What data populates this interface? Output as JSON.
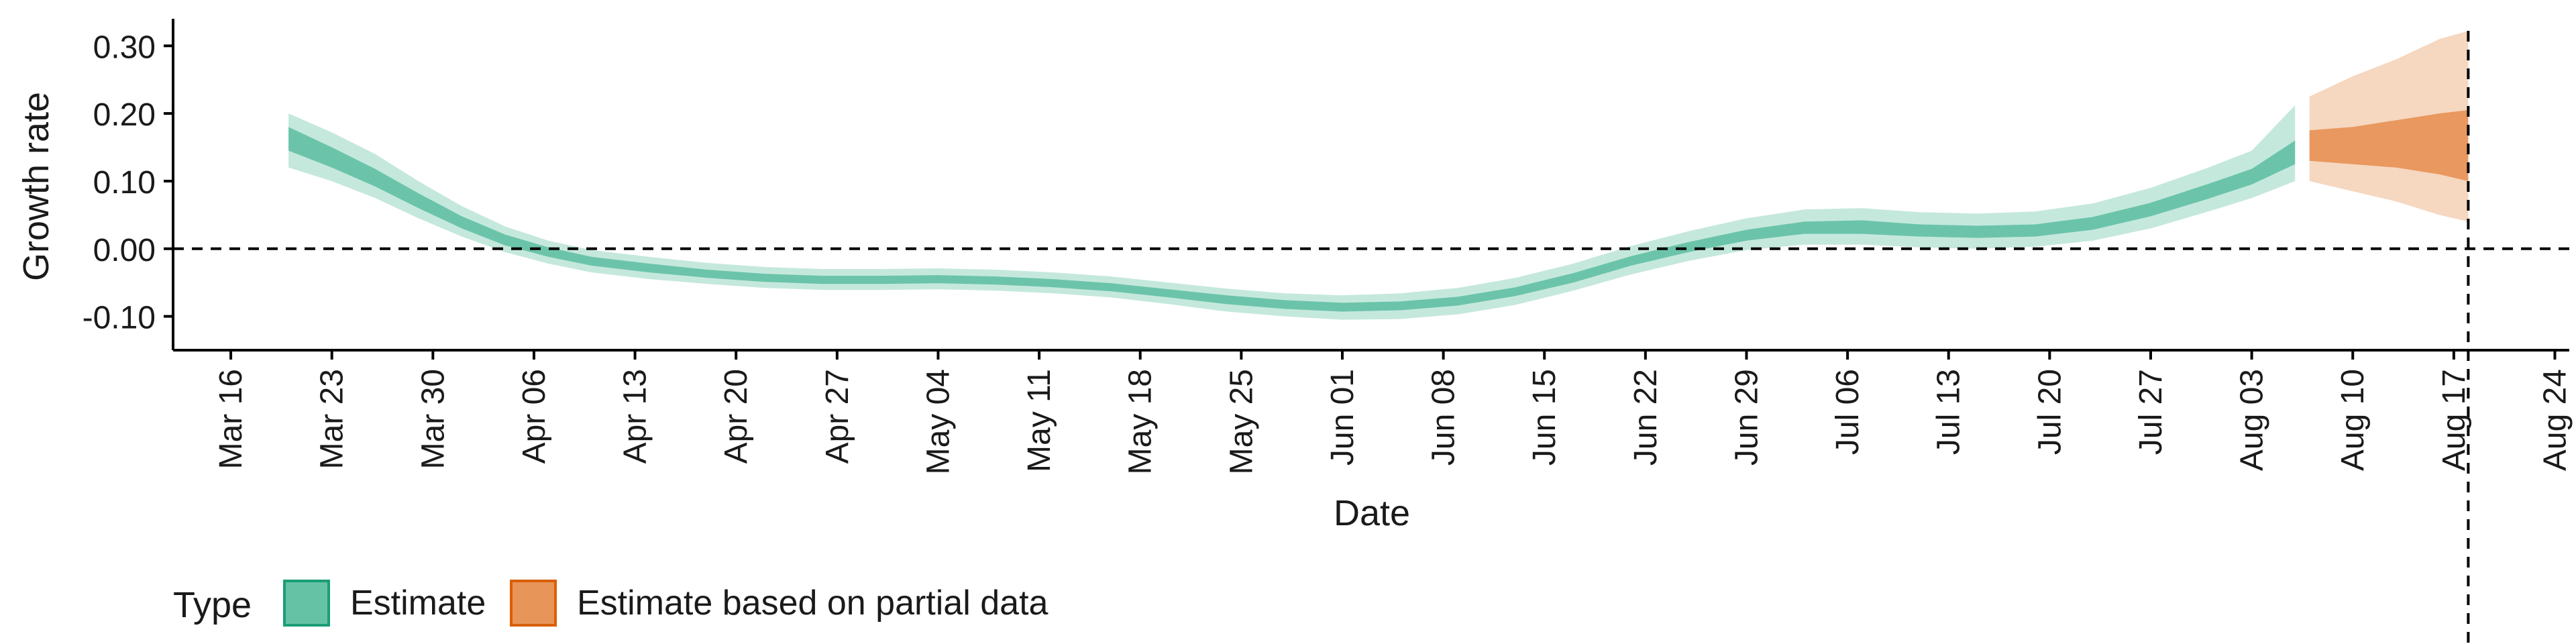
{
  "chart_data": {
    "type": "area",
    "title": "",
    "xlabel": "Date",
    "ylabel": "Growth rate",
    "x_axis_type": "date",
    "xlim": [
      "2020-03-12",
      "2020-08-25"
    ],
    "ylim": [
      -0.15,
      0.34
    ],
    "x_ticks": [
      {
        "date": "2020-03-16",
        "label": "Mar 16"
      },
      {
        "date": "2020-03-23",
        "label": "Mar 23"
      },
      {
        "date": "2020-03-30",
        "label": "Mar 30"
      },
      {
        "date": "2020-04-06",
        "label": "Apr 06"
      },
      {
        "date": "2020-04-13",
        "label": "Apr 13"
      },
      {
        "date": "2020-04-20",
        "label": "Apr 20"
      },
      {
        "date": "2020-04-27",
        "label": "Apr 27"
      },
      {
        "date": "2020-05-04",
        "label": "May 04"
      },
      {
        "date": "2020-05-11",
        "label": "May 11"
      },
      {
        "date": "2020-05-18",
        "label": "May 18"
      },
      {
        "date": "2020-05-25",
        "label": "May 25"
      },
      {
        "date": "2020-06-01",
        "label": "Jun 01"
      },
      {
        "date": "2020-06-08",
        "label": "Jun 08"
      },
      {
        "date": "2020-06-15",
        "label": "Jun 15"
      },
      {
        "date": "2020-06-22",
        "label": "Jun 22"
      },
      {
        "date": "2020-06-29",
        "label": "Jun 29"
      },
      {
        "date": "2020-07-06",
        "label": "Jul 06"
      },
      {
        "date": "2020-07-13",
        "label": "Jul 13"
      },
      {
        "date": "2020-07-20",
        "label": "Jul 20"
      },
      {
        "date": "2020-07-27",
        "label": "Jul 27"
      },
      {
        "date": "2020-08-03",
        "label": "Aug 03"
      },
      {
        "date": "2020-08-10",
        "label": "Aug 10"
      },
      {
        "date": "2020-08-17",
        "label": "Aug 17"
      },
      {
        "date": "2020-08-24",
        "label": "Aug 24"
      }
    ],
    "y_ticks": [
      {
        "value": -0.1,
        "label": "-0.10"
      },
      {
        "value": 0.0,
        "label": "0.00"
      },
      {
        "value": 0.1,
        "label": "0.10"
      },
      {
        "value": 0.2,
        "label": "0.20"
      },
      {
        "value": 0.3,
        "label": "0.30"
      }
    ],
    "hline": {
      "value": 0,
      "style": "dashed"
    },
    "vline": {
      "date": "2020-08-18",
      "style": "dashed"
    },
    "grid": false,
    "legend": {
      "title": "Type",
      "position": "bottom-left",
      "entries": [
        {
          "label": "Estimate",
          "fill": "#66c2a5",
          "border": "#1b9e77"
        },
        {
          "label": "Estimate based on partial data",
          "fill": "#e8955a",
          "border": "#d95f02"
        }
      ]
    },
    "series": [
      {
        "name": "Estimate",
        "color": "#66c2a5",
        "points": [
          {
            "x": "2020-03-20",
            "lo90": 0.12,
            "lo50": 0.145,
            "hi50": 0.18,
            "hi90": 0.2
          },
          {
            "x": "2020-03-23",
            "lo90": 0.1,
            "lo50": 0.12,
            "hi50": 0.15,
            "hi90": 0.172
          },
          {
            "x": "2020-03-26",
            "lo90": 0.075,
            "lo50": 0.092,
            "hi50": 0.118,
            "hi90": 0.14
          },
          {
            "x": "2020-03-29",
            "lo90": 0.045,
            "lo50": 0.06,
            "hi50": 0.082,
            "hi90": 0.1
          },
          {
            "x": "2020-04-01",
            "lo90": 0.018,
            "lo50": 0.03,
            "hi50": 0.048,
            "hi90": 0.063
          },
          {
            "x": "2020-04-04",
            "lo90": -0.005,
            "lo50": 0.005,
            "hi50": 0.021,
            "hi90": 0.033
          },
          {
            "x": "2020-04-07",
            "lo90": -0.022,
            "lo50": -0.012,
            "hi50": 0.002,
            "hi90": 0.012
          },
          {
            "x": "2020-04-10",
            "lo90": -0.035,
            "lo50": -0.025,
            "hi50": -0.012,
            "hi90": -0.002
          },
          {
            "x": "2020-04-14",
            "lo90": -0.045,
            "lo50": -0.035,
            "hi50": -0.022,
            "hi90": -0.012
          },
          {
            "x": "2020-04-18",
            "lo90": -0.052,
            "lo50": -0.043,
            "hi50": -0.031,
            "hi90": -0.021
          },
          {
            "x": "2020-04-22",
            "lo90": -0.058,
            "lo50": -0.049,
            "hi50": -0.037,
            "hi90": -0.027
          },
          {
            "x": "2020-04-26",
            "lo90": -0.061,
            "lo50": -0.052,
            "hi50": -0.04,
            "hi90": -0.03
          },
          {
            "x": "2020-04-30",
            "lo90": -0.061,
            "lo50": -0.052,
            "hi50": -0.04,
            "hi90": -0.03
          },
          {
            "x": "2020-05-04",
            "lo90": -0.06,
            "lo50": -0.051,
            "hi50": -0.039,
            "hi90": -0.029
          },
          {
            "x": "2020-05-08",
            "lo90": -0.062,
            "lo50": -0.053,
            "hi50": -0.041,
            "hi90": -0.031
          },
          {
            "x": "2020-05-12",
            "lo90": -0.066,
            "lo50": -0.057,
            "hi50": -0.045,
            "hi90": -0.035
          },
          {
            "x": "2020-05-16",
            "lo90": -0.072,
            "lo50": -0.063,
            "hi50": -0.051,
            "hi90": -0.041
          },
          {
            "x": "2020-05-20",
            "lo90": -0.082,
            "lo50": -0.072,
            "hi50": -0.06,
            "hi90": -0.05
          },
          {
            "x": "2020-05-24",
            "lo90": -0.093,
            "lo50": -0.082,
            "hi50": -0.069,
            "hi90": -0.059
          },
          {
            "x": "2020-05-28",
            "lo90": -0.1,
            "lo50": -0.089,
            "hi50": -0.076,
            "hi90": -0.066
          },
          {
            "x": "2020-06-01",
            "lo90": -0.105,
            "lo50": -0.093,
            "hi50": -0.08,
            "hi90": -0.069
          },
          {
            "x": "2020-06-05",
            "lo90": -0.104,
            "lo50": -0.091,
            "hi50": -0.078,
            "hi90": -0.066
          },
          {
            "x": "2020-06-09",
            "lo90": -0.097,
            "lo50": -0.084,
            "hi50": -0.071,
            "hi90": -0.058
          },
          {
            "x": "2020-06-13",
            "lo90": -0.083,
            "lo50": -0.07,
            "hi50": -0.057,
            "hi90": -0.043
          },
          {
            "x": "2020-06-17",
            "lo90": -0.062,
            "lo50": -0.05,
            "hi50": -0.036,
            "hi90": -0.022
          },
          {
            "x": "2020-06-21",
            "lo90": -0.038,
            "lo50": -0.025,
            "hi50": -0.011,
            "hi90": 0.004
          },
          {
            "x": "2020-06-25",
            "lo90": -0.018,
            "lo50": -0.005,
            "hi50": 0.01,
            "hi90": 0.026
          },
          {
            "x": "2020-06-29",
            "lo90": -0.002,
            "lo50": 0.012,
            "hi50": 0.028,
            "hi90": 0.045
          },
          {
            "x": "2020-07-03",
            "lo90": 0.006,
            "lo50": 0.022,
            "hi50": 0.04,
            "hi90": 0.058
          },
          {
            "x": "2020-07-07",
            "lo90": 0.006,
            "lo50": 0.022,
            "hi50": 0.042,
            "hi90": 0.06
          },
          {
            "x": "2020-07-11",
            "lo90": 0.002,
            "lo50": 0.018,
            "hi50": 0.036,
            "hi90": 0.054
          },
          {
            "x": "2020-07-15",
            "lo90": 0.0,
            "lo50": 0.016,
            "hi50": 0.034,
            "hi90": 0.052
          },
          {
            "x": "2020-07-19",
            "lo90": 0.003,
            "lo50": 0.018,
            "hi50": 0.036,
            "hi90": 0.055
          },
          {
            "x": "2020-07-23",
            "lo90": 0.012,
            "lo50": 0.028,
            "hi50": 0.047,
            "hi90": 0.067
          },
          {
            "x": "2020-07-27",
            "lo90": 0.03,
            "lo50": 0.048,
            "hi50": 0.068,
            "hi90": 0.09
          },
          {
            "x": "2020-07-31",
            "lo90": 0.055,
            "lo50": 0.074,
            "hi50": 0.096,
            "hi90": 0.12
          },
          {
            "x": "2020-08-03",
            "lo90": 0.075,
            "lo50": 0.095,
            "hi50": 0.118,
            "hi90": 0.145
          },
          {
            "x": "2020-08-06",
            "lo90": 0.1,
            "lo50": 0.125,
            "hi50": 0.16,
            "hi90": 0.212
          }
        ]
      },
      {
        "name": "Estimate based on partial data",
        "color": "#e8955a",
        "points": [
          {
            "x": "2020-08-07",
            "lo90": 0.1,
            "lo50": 0.13,
            "hi50": 0.175,
            "hi90": 0.225
          },
          {
            "x": "2020-08-10",
            "lo90": 0.085,
            "lo50": 0.125,
            "hi50": 0.18,
            "hi90": 0.255
          },
          {
            "x": "2020-08-13",
            "lo90": 0.07,
            "lo50": 0.12,
            "hi50": 0.19,
            "hi90": 0.28
          },
          {
            "x": "2020-08-16",
            "lo90": 0.05,
            "lo50": 0.11,
            "hi50": 0.2,
            "hi90": 0.31
          },
          {
            "x": "2020-08-18",
            "lo90": 0.04,
            "lo50": 0.1,
            "hi50": 0.205,
            "hi90": 0.322
          }
        ]
      }
    ]
  }
}
